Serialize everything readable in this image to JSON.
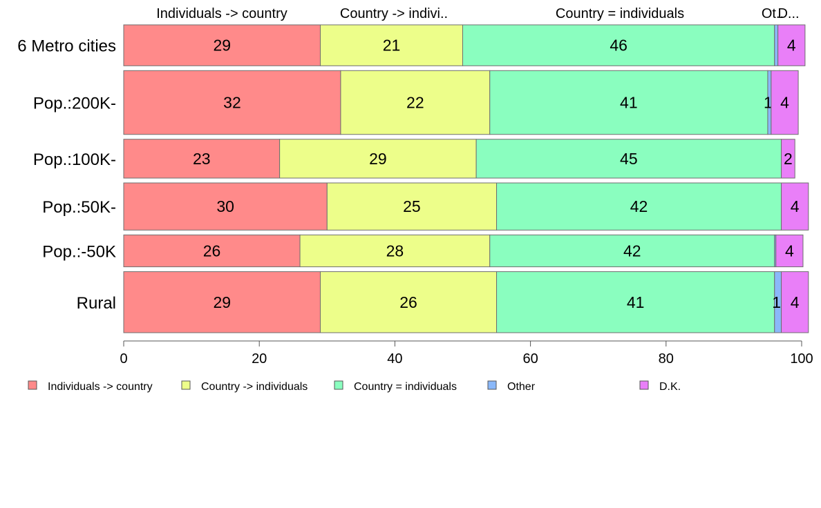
{
  "chart_data": {
    "type": "bar",
    "orientation": "horizontal",
    "stacked": true,
    "categories": [
      "6 Metro cities",
      "Pop.:200K-",
      "Pop.:100K-",
      "Pop.:50K-",
      "Pop.:-50K",
      "Rural"
    ],
    "category_weights": [
      59,
      92,
      56,
      68,
      46,
      88
    ],
    "series": [
      {
        "name": "Individuals -> country",
        "color": "#FF8A8A",
        "values": [
          29,
          32,
          23,
          30,
          26,
          29
        ]
      },
      {
        "name": "Country -> individuals",
        "color": "#EDFE8A",
        "values": [
          21,
          22,
          29,
          25,
          28,
          26
        ]
      },
      {
        "name": "Country = individuals",
        "color": "#8AFEBF",
        "values": [
          46,
          41,
          45,
          42,
          42,
          41
        ]
      },
      {
        "name": "Other",
        "color": "#8AB8F9",
        "values": [
          0.5,
          0.5,
          0,
          0,
          0.2,
          1
        ]
      },
      {
        "name": "D.K.",
        "color": "#E97FF8",
        "values": [
          4,
          4,
          2,
          4,
          4,
          4
        ]
      }
    ],
    "data_labels": [
      [
        "29",
        "21",
        "46",
        "",
        "4"
      ],
      [
        "32",
        "22",
        "41",
        "1",
        "4"
      ],
      [
        "23",
        "29",
        "45",
        "",
        "2"
      ],
      [
        "30",
        "25",
        "42",
        "",
        "4"
      ],
      [
        "26",
        "28",
        "42",
        "",
        "4"
      ],
      [
        "29",
        "26",
        "41",
        "1",
        "4"
      ]
    ],
    "top_labels": [
      "Individuals -> country",
      "Country -> indivi..",
      "Country = individuals",
      "Ot..",
      "D..."
    ],
    "xlim": [
      0,
      100
    ],
    "xticks": [
      "0",
      "20",
      "40",
      "60",
      "80",
      "100"
    ],
    "grid": false,
    "legend_position": "bottom"
  }
}
